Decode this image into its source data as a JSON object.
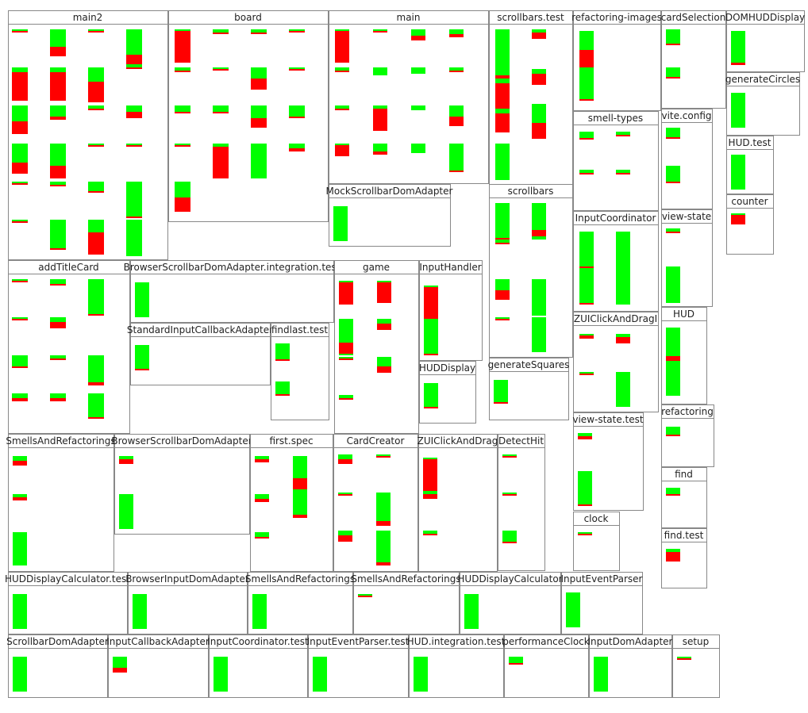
{
  "boxes": [
    {
      "label": "main2"
    },
    {
      "label": "board"
    },
    {
      "label": "main"
    },
    {
      "label": "scrollbars.test"
    },
    {
      "label": "refactoring-images"
    },
    {
      "label": "cardSelection"
    },
    {
      "label": "DOMHUDDisplay"
    },
    {
      "label": "generateCircles"
    },
    {
      "label": "vite.config"
    },
    {
      "label": "smell-types"
    },
    {
      "label": "HUD.test"
    },
    {
      "label": "counter"
    },
    {
      "label": "MockScrollbarDomAdapter"
    },
    {
      "label": "scrollbars"
    },
    {
      "label": "view-state"
    },
    {
      "label": "InputCoordinator"
    },
    {
      "label": "addTitleCard"
    },
    {
      "label": "BrowserScrollbarDomAdapter.integration.test"
    },
    {
      "label": "game"
    },
    {
      "label": "InputHandler"
    },
    {
      "label": "HUD"
    },
    {
      "label": "ZUIClickAndDragI"
    },
    {
      "label": "StandardInputCallbackAdapter"
    },
    {
      "label": "findlast.test"
    },
    {
      "label": "generateSquares"
    },
    {
      "label": "HUDDisplay"
    },
    {
      "label": "refactoring"
    },
    {
      "label": "view-state.test"
    },
    {
      "label": "SmellsAndRefactorings"
    },
    {
      "label": "BrowserScrollbarDomAdapter"
    },
    {
      "label": "first.spec"
    },
    {
      "label": "CardCreator"
    },
    {
      "label": "ZUIClickAndDrag"
    },
    {
      "label": "DetectHit"
    },
    {
      "label": "find"
    },
    {
      "label": "clock"
    },
    {
      "label": "find.test"
    },
    {
      "label": "HUDDisplayCalculator.test"
    },
    {
      "label": "BrowserInputDomAdapter"
    },
    {
      "label": "SmellsAndRefactorings"
    },
    {
      "label": "SmellsAndRefactorings"
    },
    {
      "label": "HUDDisplayCalculator"
    },
    {
      "label": "InputEventParser"
    },
    {
      "label": "ScrollbarDomAdapter"
    },
    {
      "label": "InputCallbackAdapter"
    },
    {
      "label": "InputCoordinator.test"
    },
    {
      "label": "InputEventParser.test"
    },
    {
      "label": "HUD.integration.test"
    },
    {
      "label": "performanceClock"
    },
    {
      "label": "InputDomAdapter"
    },
    {
      "label": "setup"
    }
  ]
}
